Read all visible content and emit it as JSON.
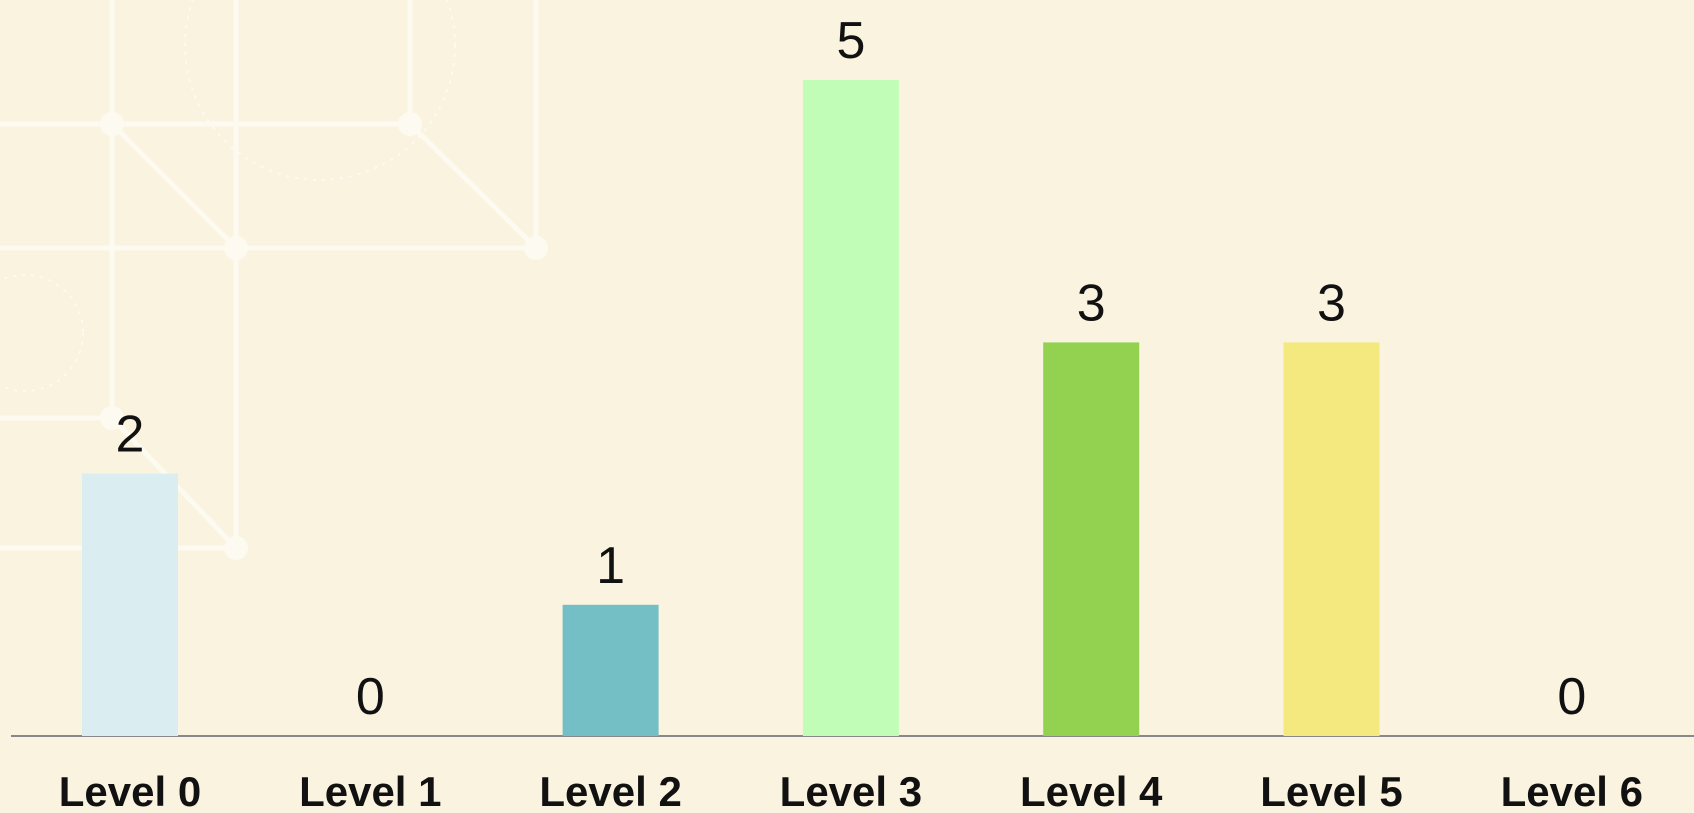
{
  "chart_data": {
    "type": "bar",
    "categories": [
      "Level 0",
      "Level 1",
      "Level 2",
      "Level 3",
      "Level 4",
      "Level 5",
      "Level 6"
    ],
    "values": [
      2,
      0,
      1,
      5,
      3,
      3,
      0
    ],
    "colors": [
      "#daedf0",
      "#a8d8e0",
      "#74bfc5",
      "#c2fdb8",
      "#92d250",
      "#f3e97e",
      "#f0c674"
    ]
  }
}
